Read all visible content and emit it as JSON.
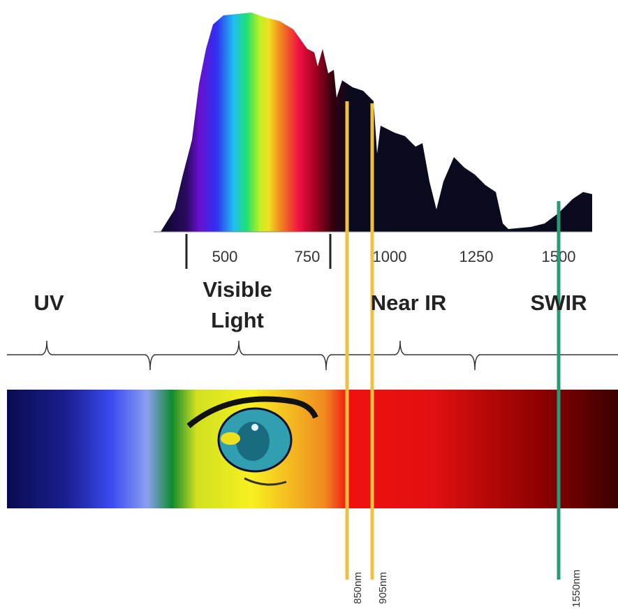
{
  "axis": {
    "ticks": [
      "500",
      "750",
      "1000",
      "1250",
      "1500"
    ]
  },
  "regions": [
    "UV",
    "Visible Light",
    "Near IR",
    "SWIR"
  ],
  "markers": [
    "850nm",
    "905nm",
    "1550nm"
  ]
}
